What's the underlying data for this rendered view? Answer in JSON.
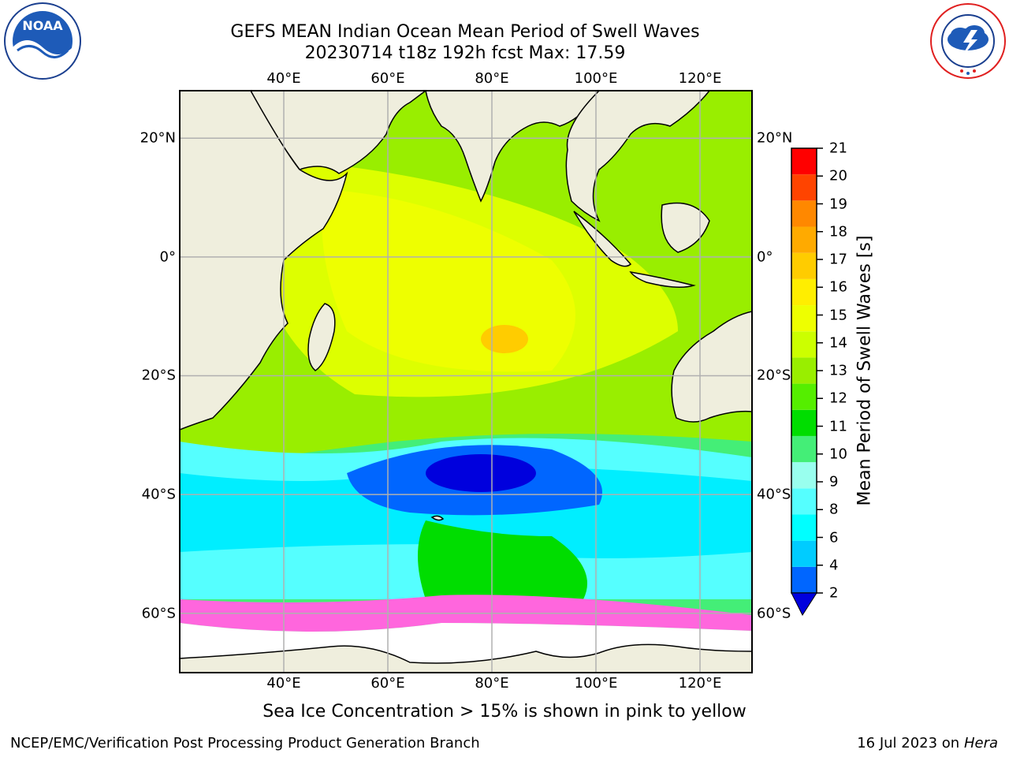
{
  "title": {
    "line1": "GEFS MEAN Indian Ocean Mean Period of Swell Waves",
    "line2": "20230714 t18z 192h fcst   Max: 17.59"
  },
  "logos": {
    "noaa_text": "NOAA",
    "noaa_ring_text": "NATIONAL OCEANIC AND ATMOSPHERIC ADMINISTRATION · U.S. DEPARTMENT OF COMMERCE",
    "nws_ring_text": "NATIONAL WEATHER SERVICE"
  },
  "map": {
    "lon_range": [
      20,
      130
    ],
    "lat_range": [
      -70,
      28
    ],
    "lon_ticks": [
      {
        "value": 40,
        "label": "40°E"
      },
      {
        "value": 60,
        "label": "60°E"
      },
      {
        "value": 80,
        "label": "80°E"
      },
      {
        "value": 100,
        "label": "100°E"
      },
      {
        "value": 120,
        "label": "120°E"
      }
    ],
    "lat_ticks": [
      {
        "value": 20,
        "label": "20°N"
      },
      {
        "value": 0,
        "label": "0°"
      },
      {
        "value": -20,
        "label": "20°S"
      },
      {
        "value": -40,
        "label": "40°S"
      },
      {
        "value": -60,
        "label": "60°S"
      }
    ],
    "grid": true,
    "land_color": "#efeedd",
    "grid_color": "#b0b0b0"
  },
  "colorbar": {
    "title": "Mean Period of Swell Waves [s]",
    "labels": [
      "2",
      "4",
      "6",
      "8",
      "9",
      "10",
      "11",
      "12",
      "13",
      "14",
      "15",
      "16",
      "17",
      "18",
      "19",
      "20",
      "21"
    ],
    "colors": [
      "#0066ff",
      "#00ccff",
      "#00ffff",
      "#55ffff",
      "#99ffee",
      "#44ee77",
      "#00dd00",
      "#55ee00",
      "#99ee00",
      "#ccff00",
      "#eeff00",
      "#ffee00",
      "#ffcc00",
      "#ffaa00",
      "#ff8800",
      "#ff4400",
      "#ff0000"
    ],
    "extend_low_color": "#0000dd"
  },
  "note": "Sea Ice Concentration > 15% is shown in pink to yellow",
  "footer": {
    "left": "NCEP/EMC/Verification Post Processing Product Generation Branch",
    "right_prefix": "16 Jul 2023 on ",
    "right_host": "Hera"
  }
}
